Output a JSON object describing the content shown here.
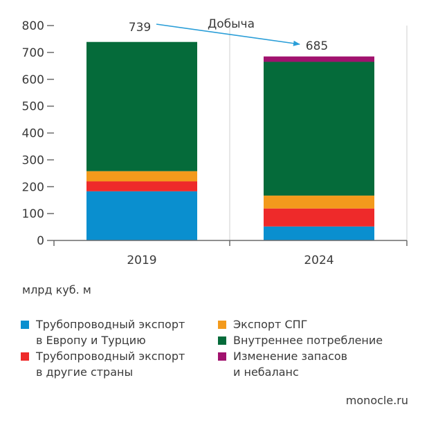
{
  "chart_data": {
    "type": "bar",
    "stacked": true,
    "categories": [
      "2019",
      "2024"
    ],
    "ylim": [
      0,
      800
    ],
    "yticks": [
      0,
      100,
      200,
      300,
      400,
      500,
      600,
      700,
      800
    ],
    "grid": "vertical-only",
    "series": [
      {
        "name": "Трубопроводный экспорт в Европу и Турцию",
        "color": "#0a8fcf",
        "values": [
          183,
          52
        ]
      },
      {
        "name": "Трубопроводный экспорт в другие страны",
        "color": "#ee2a2a",
        "values": [
          37,
          67
        ]
      },
      {
        "name": "Экспорт СПГ",
        "color": "#f39a1c",
        "values": [
          38,
          48
        ]
      },
      {
        "name": "Внутреннее потребление",
        "color": "#056b3a",
        "values": [
          481,
          498
        ]
      },
      {
        "name": "Изменение запасов и небаланс",
        "color": "#a1126e",
        "values": [
          0,
          20
        ]
      }
    ],
    "totals": [
      "739",
      "685"
    ],
    "annotation": "Добыча",
    "unit_label": "млрд куб. м"
  },
  "legend": [
    {
      "line1": "Трубопроводный экспорт",
      "line2": "в Европу и Турцию",
      "color": "#0a8fcf"
    },
    {
      "line1": "Экспорт СПГ",
      "line2": "",
      "color": "#f39a1c"
    },
    {
      "line1": "Трубопроводный экспорт",
      "line2": "в другие страны",
      "color": "#ee2a2a"
    },
    {
      "line1": "Внутреннее потребление",
      "line2": "",
      "color": "#056b3a"
    },
    {
      "line1": "",
      "line2": "",
      "color": ""
    },
    {
      "line1": "Изменение запасов",
      "line2": "и небаланс",
      "color": "#a1126e"
    }
  ],
  "source": "monocle.ru"
}
